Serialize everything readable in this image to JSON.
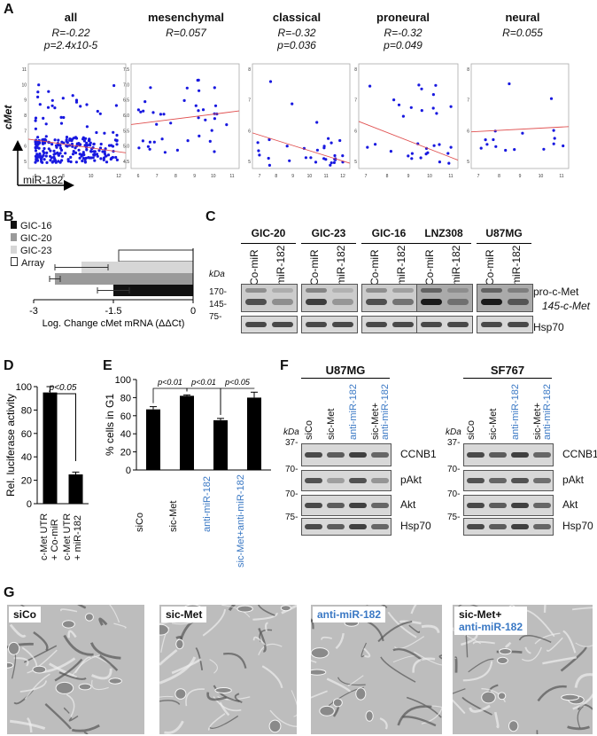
{
  "panel_labels": {
    "a": "A",
    "b": "B",
    "c": "C",
    "d": "D",
    "e": "E",
    "f": "F",
    "g": "G"
  },
  "panelA": {
    "y_label": "cMet",
    "x_label": "miR-182",
    "plots": [
      {
        "title": "all",
        "r": "R=-0.22",
        "p": "p=2.4x10-5",
        "xticks": [
          "6",
          "8",
          "10",
          "12"
        ],
        "yticks": [
          "5",
          "6",
          "7",
          "8",
          "9",
          "10",
          "11"
        ]
      },
      {
        "title": "mesenchymal",
        "r": "R=0.057",
        "p": "",
        "xticks": [
          "6",
          "7",
          "8",
          "9",
          "10",
          "11"
        ],
        "yticks": [
          "4.5",
          "5.0",
          "5.5",
          "6.0",
          "6.5",
          "7.0",
          "7.5"
        ]
      },
      {
        "title": "classical",
        "r": "R=-0.32",
        "p": "p=0.036",
        "xticks": [
          "7",
          "8",
          "9",
          "10",
          "11",
          "12"
        ],
        "yticks": [
          "5",
          "6",
          "7",
          "8"
        ]
      },
      {
        "title": "proneural",
        "r": "R=-0.32",
        "p": "p=0.049",
        "xticks": [
          "7",
          "8",
          "9",
          "10",
          "11"
        ],
        "yticks": [
          "5",
          "6",
          "7",
          "8"
        ]
      },
      {
        "title": "neural",
        "r": "R=0.055",
        "p": "",
        "xticks": [
          "7",
          "8",
          "9",
          "10",
          "11"
        ],
        "yticks": [
          "5",
          "6",
          "7",
          "8"
        ]
      }
    ]
  },
  "chart_data": [
    {
      "type": "bar",
      "panel": "B",
      "orientation": "horizontal",
      "xlabel": "Log. Change cMet mRNA (ΔΔCt)",
      "xticks": [
        "-3",
        "-1.5",
        "0"
      ],
      "xlim": [
        -3,
        0
      ],
      "series": [
        {
          "name": "GIC-16",
          "value": -1.5,
          "err": 0.3,
          "color": "#111111"
        },
        {
          "name": "GIC-20",
          "value": -2.6,
          "err": 0.1,
          "color": "#9a9a9a"
        },
        {
          "name": "GIC-23",
          "value": -2.1,
          "err": 0.5,
          "color": "#d6d6d6"
        },
        {
          "name": "Array",
          "value": -1.4,
          "err": 0,
          "color": "#ffffff"
        }
      ]
    },
    {
      "type": "bar",
      "panel": "D",
      "ylabel": "Rel. luciferase activity",
      "yticks": [
        "0",
        "20",
        "40",
        "60",
        "80",
        "100"
      ],
      "ylim": [
        0,
        100
      ],
      "categories": [
        "c-Met UTR + Co-miR",
        "c-Met UTR + miR-182"
      ],
      "values": [
        95,
        25
      ],
      "errors": [
        5,
        2
      ],
      "annotations": [
        "p<0.05"
      ]
    },
    {
      "type": "bar",
      "panel": "E",
      "ylabel": "% cells in G1",
      "yticks": [
        "0",
        "20",
        "40",
        "60",
        "80",
        "100"
      ],
      "ylim": [
        0,
        100
      ],
      "categories": [
        "siCo",
        "sic-Met",
        "anti-miR-182",
        "sic-Met+anti-miR-182"
      ],
      "values": [
        67,
        82,
        55,
        80
      ],
      "errors": [
        3,
        1,
        2,
        6
      ],
      "annotations": [
        "p<0.01",
        "p<0.01",
        "p<0.05"
      ]
    }
  ],
  "panelC": {
    "kda": "kDa",
    "markers": [
      "170-",
      "145-",
      "75-"
    ],
    "groups": [
      "GIC-20",
      "GIC-23",
      "GIC-16",
      "LNZ308",
      "U87MG"
    ],
    "lanes": [
      "Co-miR",
      "miR-182",
      "Co-miR",
      "miR-182",
      "Co-miR",
      "miR-182",
      "Co-miR",
      "miR-182",
      "Co-miR",
      "miR-182"
    ],
    "bands": [
      "pro-c-Met",
      "145-c-Met",
      "Hsp70"
    ]
  },
  "panelF": {
    "kda": "kDa",
    "left_title": "U87MG",
    "right_title": "SF767",
    "lanes": [
      "siCo",
      "sic-Met",
      "anti-miR-182",
      "sic-Met+ anti-miR-182"
    ],
    "markers": [
      "37-",
      "70-",
      "70-",
      "75-"
    ],
    "bands": [
      "CCNB1",
      "pAkt",
      "Akt",
      "Hsp70"
    ]
  },
  "panelG": {
    "labels": [
      "siCo",
      "sic-Met",
      "anti-miR-182",
      "sic-Met+",
      "anti-miR-182"
    ]
  }
}
